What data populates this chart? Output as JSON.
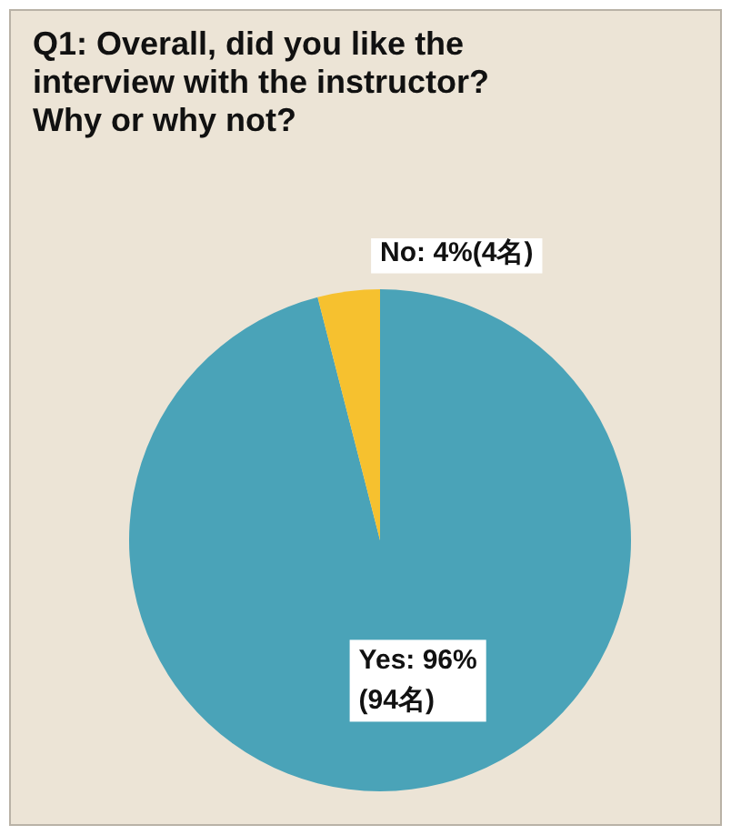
{
  "chart_data": {
    "type": "pie",
    "title": "Q1: Overall, did you like the interview with the instructor? Why or why not?",
    "categories": [
      "Yes",
      "No"
    ],
    "values": [
      96,
      4
    ],
    "colors": [
      "#4aa3b8",
      "#f6c12f"
    ],
    "value_labels": [
      "96%\n(94名)",
      "4%(4名)"
    ],
    "legend": false
  }
}
